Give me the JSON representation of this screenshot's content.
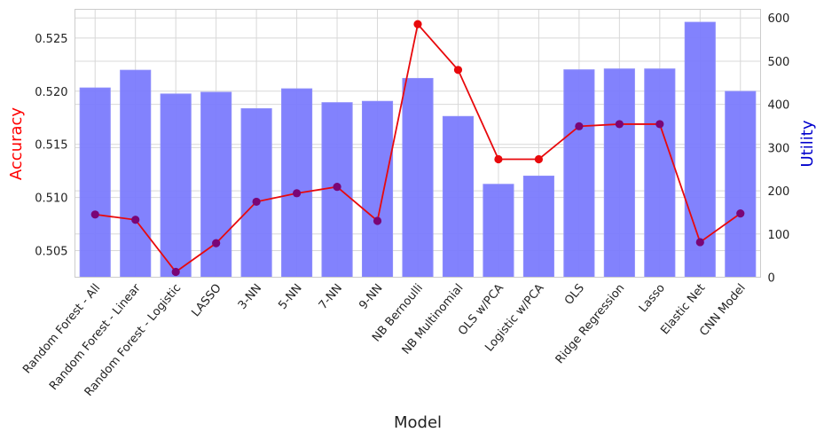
{
  "chart_data": {
    "type": "bar",
    "categories": [
      "Random Forest - All",
      "Random Forest - Linear",
      "Random Forest - Logistic",
      "LASSO",
      "3-NN",
      "5-NN",
      "7-NN",
      "9-NN",
      "NB Bernoulli",
      "NB Multinomial",
      "OLS w/PCA",
      "Logistic w/PCA",
      "OLS",
      "Ridge Regression",
      "Lasso",
      "Elastic Net",
      "CNN Model"
    ],
    "xlabel": "Model",
    "ylabel_left": "Accuracy",
    "ylabel_right": "Utility",
    "ylim_left": [
      0.5025,
      0.5277
    ],
    "ylim_right": [
      0,
      620
    ],
    "yticks_left": [
      "0.505",
      "0.510",
      "0.515",
      "0.520",
      "0.525"
    ],
    "yticks_right": [
      "0",
      "100",
      "200",
      "300",
      "400",
      "500",
      "600"
    ],
    "grid": true,
    "series": [
      {
        "kind": "bar",
        "axis": "right",
        "values": [
          438,
          479,
          424,
          428,
          390,
          436,
          404,
          407,
          460,
          372,
          215,
          234,
          480,
          482,
          482,
          590,
          430
        ]
      },
      {
        "kind": "line",
        "axis": "left",
        "values": [
          0.5084,
          0.5079,
          0.503,
          0.5057,
          0.5096,
          0.5104,
          0.511,
          0.5078,
          0.5263,
          0.522,
          0.5136,
          0.5136,
          0.5167,
          0.5169,
          0.5169,
          0.5058,
          0.5085
        ]
      }
    ],
    "colors": {
      "bar_fill": "#7b7bfd",
      "bar_edge": "#8d8dfb",
      "line": "#e8090c",
      "marker_over_bar": "#7a0576",
      "left_label": "#ff0000",
      "right_label": "#0000cc",
      "grid": "#d8d8d8",
      "spine": "#cccccc"
    }
  }
}
